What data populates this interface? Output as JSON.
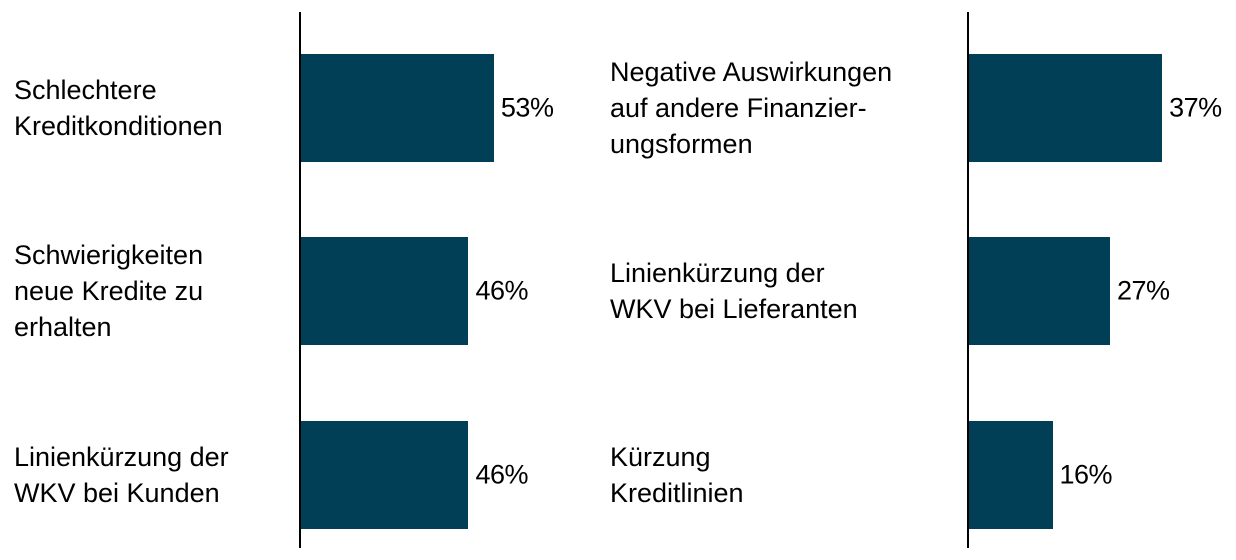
{
  "chart_data": [
    {
      "type": "barh",
      "categories": [
        "Schlechtere\nKreditkonditionen",
        "Schwierigkeiten\nneue Kredite zu\nerhalten",
        "Linienkürzung der\nWKV bei Kunden"
      ],
      "values": [
        53,
        46,
        46
      ],
      "value_labels": [
        "53%",
        "46%",
        "46%"
      ],
      "color": "#003f56"
    },
    {
      "type": "barh",
      "categories": [
        "Negative Auswirkungen\nauf andere Finanzier-\nungsformen",
        "Linienkürzung der\nWKV bei Lieferanten",
        "Kürzung\nKreditlinien"
      ],
      "values": [
        37,
        27,
        16
      ],
      "value_labels": [
        "37%",
        "27%",
        "16%"
      ],
      "color": "#003f56"
    }
  ]
}
